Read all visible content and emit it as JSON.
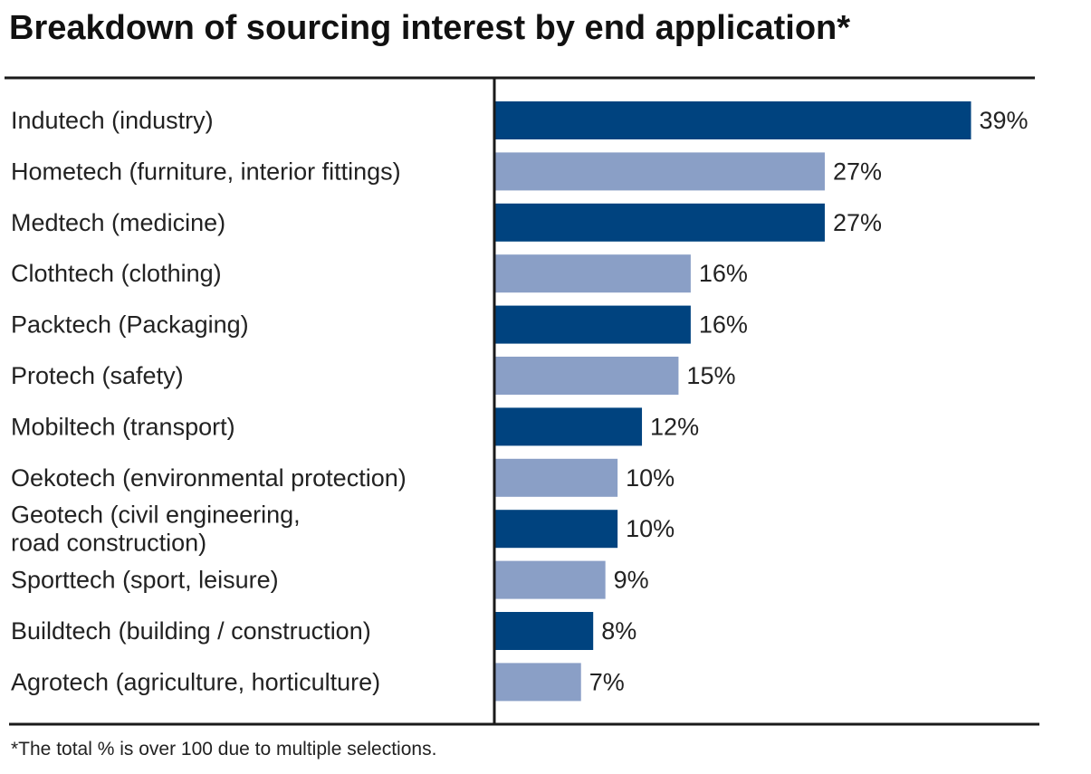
{
  "chart_data": {
    "type": "bar",
    "orientation": "horizontal",
    "title": "Breakdown of sourcing interest by end application*",
    "xlabel": "",
    "ylabel": "",
    "unit": "%",
    "xlim": [
      0,
      39
    ],
    "categories": [
      "Indutech (industry)",
      "Hometech (furniture, interior fittings)",
      "Medtech (medicine)",
      "Clothtech (clothing)",
      "Packtech (Packaging)",
      "Protech (safety)",
      "Mobiltech (transport)",
      "Oekotech (environmental protection)",
      "Geotech (civil engineering,\nroad construction)",
      "Sporttech (sport, leisure)",
      "Buildtech (building / construction)",
      "Agrotech (agriculture, horticulture)"
    ],
    "values": [
      39,
      27,
      27,
      16,
      16,
      15,
      12,
      10,
      10,
      9,
      8,
      7
    ],
    "value_labels": [
      "39%",
      "27%",
      "27%",
      "16%",
      "16%",
      "15%",
      "12%",
      "10%",
      "10%",
      "9%",
      "8%",
      "7%"
    ],
    "colors": [
      "#00437f",
      "#8a9fc6"
    ],
    "footnote": "*The total % is over 100 due to multiple selections.",
    "grid": false,
    "legend": "none"
  }
}
